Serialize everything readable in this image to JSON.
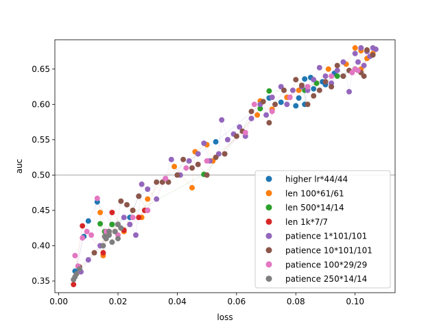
{
  "chart_data": {
    "type": "scatter",
    "xlabel": "loss",
    "ylabel": "auc",
    "xlim": [
      -0.0013,
      0.1135
    ],
    "ylim": [
      0.3335,
      0.6915
    ],
    "xticks": [
      "0.00",
      "0.02",
      "0.04",
      "0.06",
      "0.08",
      "0.10"
    ],
    "yticks": [
      "0.35",
      "0.40",
      "0.45",
      "0.50",
      "0.55",
      "0.60",
      "0.65"
    ],
    "reference_line_y": 0.5,
    "legend_position": "lower right",
    "grid": false,
    "series": [
      {
        "name": "higher lr*44/44",
        "color": "#1f77b4",
        "points": [
          [
            0.0055,
            0.364
          ],
          [
            0.0085,
            0.413
          ],
          [
            0.01,
            0.435
          ],
          [
            0.013,
            0.462
          ],
          [
            0.018,
            0.43
          ],
          [
            0.024,
            0.44
          ],
          [
            0.027,
            0.47
          ],
          [
            0.053,
            0.547
          ],
          [
            0.071,
            0.609
          ],
          [
            0.075,
            0.603
          ],
          [
            0.081,
            0.609
          ],
          [
            0.083,
            0.636
          ],
          [
            0.085,
            0.638
          ],
          [
            0.086,
            0.622
          ],
          [
            0.089,
            0.632
          ],
          [
            0.09,
            0.628
          ],
          [
            0.093,
            0.644
          ],
          [
            0.096,
            0.64
          ],
          [
            0.08,
            0.598
          ],
          [
            0.083,
            0.6
          ]
        ]
      },
      {
        "name": "len 100*61/61",
        "color": "#ff7f0e",
        "points": [
          [
            0.014,
            0.447
          ],
          [
            0.015,
            0.386
          ],
          [
            0.016,
            0.416
          ],
          [
            0.02,
            0.43
          ],
          [
            0.022,
            0.42
          ],
          [
            0.025,
            0.45
          ],
          [
            0.028,
            0.44
          ],
          [
            0.03,
            0.466
          ],
          [
            0.039,
            0.512
          ],
          [
            0.045,
            0.482
          ],
          [
            0.046,
            0.533
          ],
          [
            0.05,
            0.543
          ],
          [
            0.052,
            0.52
          ],
          [
            0.067,
            0.585
          ],
          [
            0.068,
            0.605
          ],
          [
            0.072,
            0.593
          ],
          [
            0.077,
            0.61
          ],
          [
            0.081,
            0.62
          ],
          [
            0.087,
            0.63
          ],
          [
            0.091,
            0.65
          ],
          [
            0.097,
            0.657
          ],
          [
            0.1,
            0.68
          ],
          [
            0.102,
            0.676
          ],
          [
            0.104,
            0.665
          ],
          [
            0.106,
            0.672
          ],
          [
            0.102,
            0.65
          ]
        ]
      },
      {
        "name": "len 500*14/14",
        "color": "#2ca02c",
        "points": [
          [
            0.014,
            0.431
          ],
          [
            0.0155,
            0.42
          ],
          [
            0.018,
            0.43
          ],
          [
            0.049,
            0.501
          ],
          [
            0.071,
            0.619
          ],
          [
            0.068,
            0.594
          ],
          [
            0.083,
            0.62
          ],
          [
            0.087,
            0.63
          ],
          [
            0.094,
            0.64
          ],
          [
            0.1,
            0.65
          ]
        ]
      },
      {
        "name": "len 1k*7/7",
        "color": "#d62728",
        "points": [
          [
            0.005,
            0.345
          ],
          [
            0.008,
            0.428
          ],
          [
            0.015,
            0.39
          ],
          [
            0.018,
            0.447
          ],
          [
            0.022,
            0.422
          ],
          [
            0.027,
            0.44
          ],
          [
            0.029,
            0.45
          ]
        ]
      },
      {
        "name": "patience 1*101/101",
        "color": "#9467bd",
        "points": [
          [
            0.0075,
            0.363
          ],
          [
            0.01,
            0.38
          ],
          [
            0.014,
            0.4
          ],
          [
            0.017,
            0.42
          ],
          [
            0.02,
            0.43
          ],
          [
            0.022,
            0.44
          ],
          [
            0.024,
            0.43
          ],
          [
            0.026,
            0.415
          ],
          [
            0.028,
            0.487
          ],
          [
            0.03,
            0.48
          ],
          [
            0.033,
            0.466
          ],
          [
            0.036,
            0.495
          ],
          [
            0.038,
            0.522
          ],
          [
            0.041,
            0.5
          ],
          [
            0.044,
            0.52
          ],
          [
            0.047,
            0.53
          ],
          [
            0.049,
            0.545
          ],
          [
            0.051,
            0.52
          ],
          [
            0.054,
            0.53
          ],
          [
            0.055,
            0.578
          ],
          [
            0.057,
            0.55
          ],
          [
            0.059,
            0.558
          ],
          [
            0.061,
            0.568
          ],
          [
            0.063,
            0.555
          ],
          [
            0.065,
            0.58
          ],
          [
            0.068,
            0.6
          ],
          [
            0.07,
            0.585
          ],
          [
            0.072,
            0.61
          ],
          [
            0.075,
            0.625
          ],
          [
            0.077,
            0.6
          ],
          [
            0.079,
            0.62
          ],
          [
            0.082,
            0.625
          ],
          [
            0.084,
            0.62
          ],
          [
            0.086,
            0.635
          ],
          [
            0.088,
            0.652
          ],
          [
            0.09,
            0.64
          ],
          [
            0.092,
            0.63
          ],
          [
            0.094,
            0.648
          ],
          [
            0.096,
            0.66
          ],
          [
            0.098,
            0.618
          ],
          [
            0.1,
            0.672
          ],
          [
            0.101,
            0.66
          ],
          [
            0.102,
            0.68
          ],
          [
            0.104,
            0.675
          ],
          [
            0.105,
            0.668
          ],
          [
            0.106,
            0.68
          ],
          [
            0.107,
            0.678
          ],
          [
            0.103,
            0.655
          ]
        ]
      },
      {
        "name": "patience 10*101/101",
        "color": "#8c564b",
        "points": [
          [
            0.007,
            0.37
          ],
          [
            0.012,
            0.39
          ],
          [
            0.016,
            0.41
          ],
          [
            0.019,
            0.42
          ],
          [
            0.021,
            0.463
          ],
          [
            0.023,
            0.458
          ],
          [
            0.025,
            0.45
          ],
          [
            0.027,
            0.47
          ],
          [
            0.03,
            0.45
          ],
          [
            0.033,
            0.49
          ],
          [
            0.035,
            0.49
          ],
          [
            0.037,
            0.49
          ],
          [
            0.04,
            0.5
          ],
          [
            0.042,
            0.522
          ],
          [
            0.045,
            0.51
          ],
          [
            0.047,
            0.515
          ],
          [
            0.05,
            0.5
          ],
          [
            0.053,
            0.525
          ],
          [
            0.056,
            0.53
          ],
          [
            0.06,
            0.555
          ],
          [
            0.062,
            0.562
          ],
          [
            0.065,
            0.59
          ],
          [
            0.069,
            0.604
          ],
          [
            0.071,
            0.574
          ],
          [
            0.073,
            0.6
          ],
          [
            0.076,
            0.62
          ],
          [
            0.078,
            0.61
          ],
          [
            0.08,
            0.635
          ],
          [
            0.082,
            0.627
          ],
          [
            0.084,
            0.6
          ],
          [
            0.086,
            0.612
          ],
          [
            0.088,
            0.62
          ],
          [
            0.09,
            0.632
          ],
          [
            0.092,
            0.625
          ],
          [
            0.094,
            0.655
          ],
          [
            0.096,
            0.64
          ],
          [
            0.098,
            0.648
          ],
          [
            0.1,
            0.65
          ],
          [
            0.102,
            0.645
          ],
          [
            0.104,
            0.677
          ],
          [
            0.106,
            0.67
          ],
          [
            0.103,
            0.64
          ]
        ]
      },
      {
        "name": "patience 100*29/29",
        "color": "#e377c2",
        "points": [
          [
            0.0055,
            0.386
          ],
          [
            0.0065,
            0.371
          ],
          [
            0.008,
            0.411
          ],
          [
            0.0095,
            0.42
          ],
          [
            0.011,
            0.415
          ],
          [
            0.013,
            0.467
          ],
          [
            0.016,
            0.42
          ],
          [
            0.02,
            0.415
          ],
          [
            0.025,
            0.44
          ],
          [
            0.03,
            0.45
          ],
          [
            0.036,
            0.495
          ],
          [
            0.043,
            0.51
          ],
          [
            0.05,
            0.52
          ],
          [
            0.063,
            0.56
          ],
          [
            0.066,
            0.6
          ],
          [
            0.072,
            0.59
          ],
          [
            0.078,
            0.61
          ],
          [
            0.084,
            0.625
          ],
          [
            0.092,
            0.64
          ],
          [
            0.1,
            0.65
          ],
          [
            0.101,
            0.648
          ],
          [
            0.099,
            0.645
          ]
        ]
      },
      {
        "name": "patience 250*14/14",
        "color": "#7f7f7f",
        "points": [
          [
            0.005,
            0.352
          ],
          [
            0.0055,
            0.356
          ],
          [
            0.006,
            0.36
          ],
          [
            0.007,
            0.367
          ],
          [
            0.015,
            0.4
          ],
          [
            0.016,
            0.41
          ],
          [
            0.017,
            0.415
          ],
          [
            0.018,
            0.405
          ],
          [
            0.019,
            0.42
          ],
          [
            0.02,
            0.41
          ],
          [
            0.021,
            0.425
          ],
          [
            0.017,
            0.42
          ],
          [
            0.02,
            0.43
          ],
          [
            0.0155,
            0.413
          ]
        ]
      }
    ]
  }
}
